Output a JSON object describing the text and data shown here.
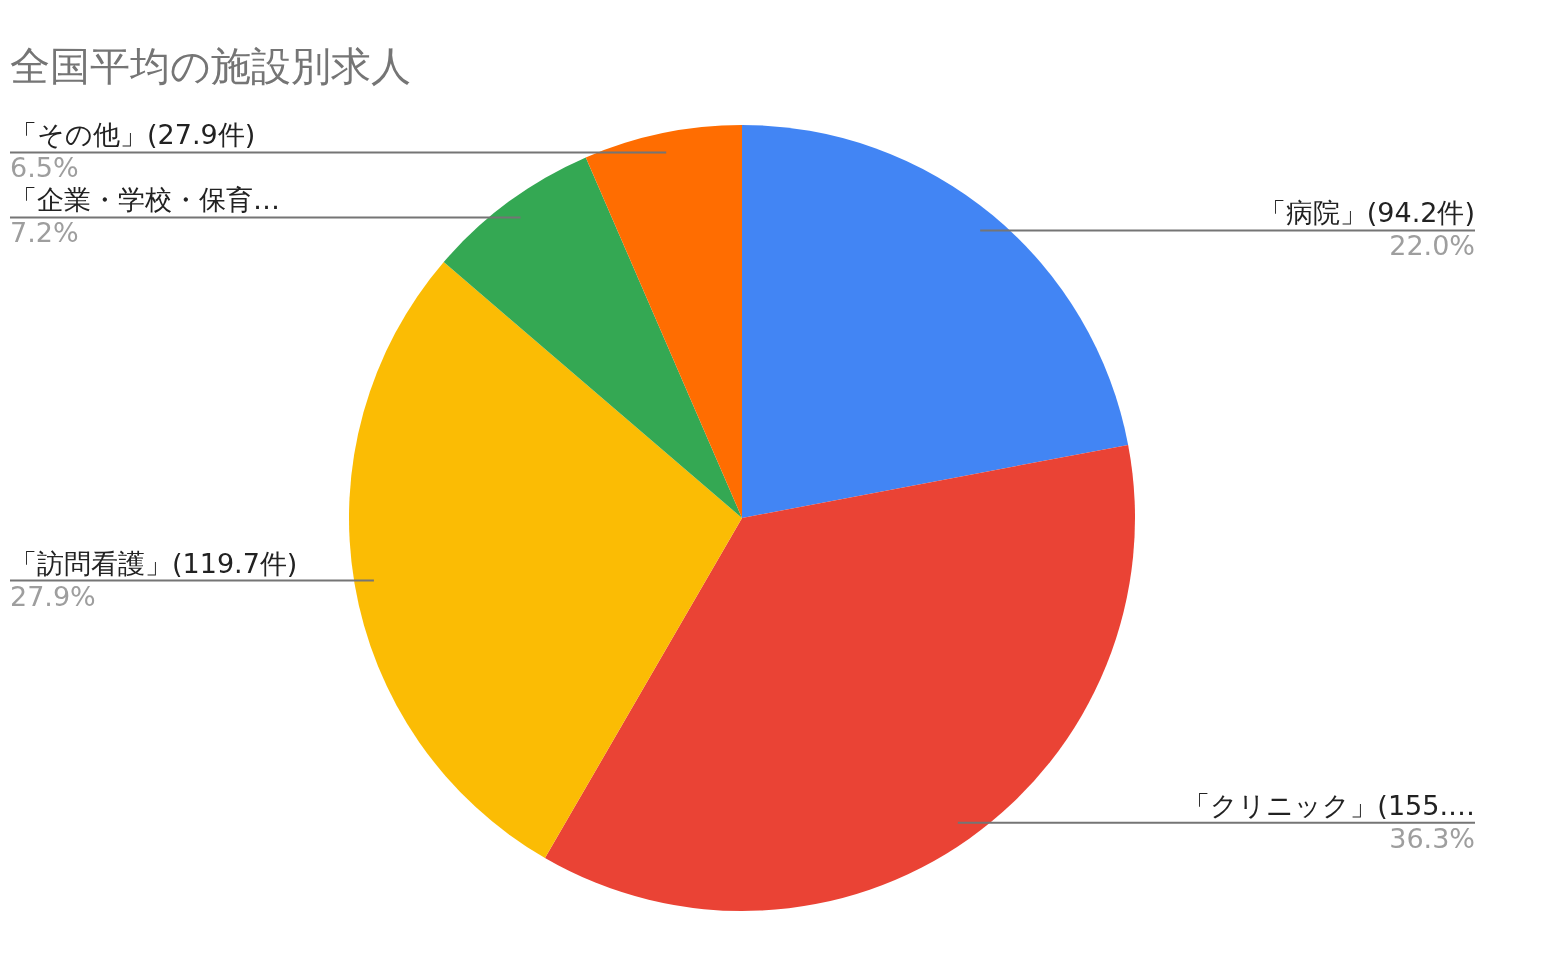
{
  "chart_data": {
    "type": "pie",
    "title": "全国平均の施設別求人",
    "categories": [
      "「病院」(94.2件)",
      "「クリニック」(155.…",
      "「訪問看護」(119.7件)",
      "「企業・学校・保育…",
      "「その他」(27.9件)"
    ],
    "values": [
      22.0,
      36.3,
      27.9,
      7.2,
      6.5
    ],
    "value_labels": [
      "22.0%",
      "36.3%",
      "27.9%",
      "7.2%",
      "6.5%"
    ],
    "colors": [
      "#4285f4",
      "#ea4335",
      "#fbbc04",
      "#34a853",
      "#ff6d01"
    ]
  }
}
